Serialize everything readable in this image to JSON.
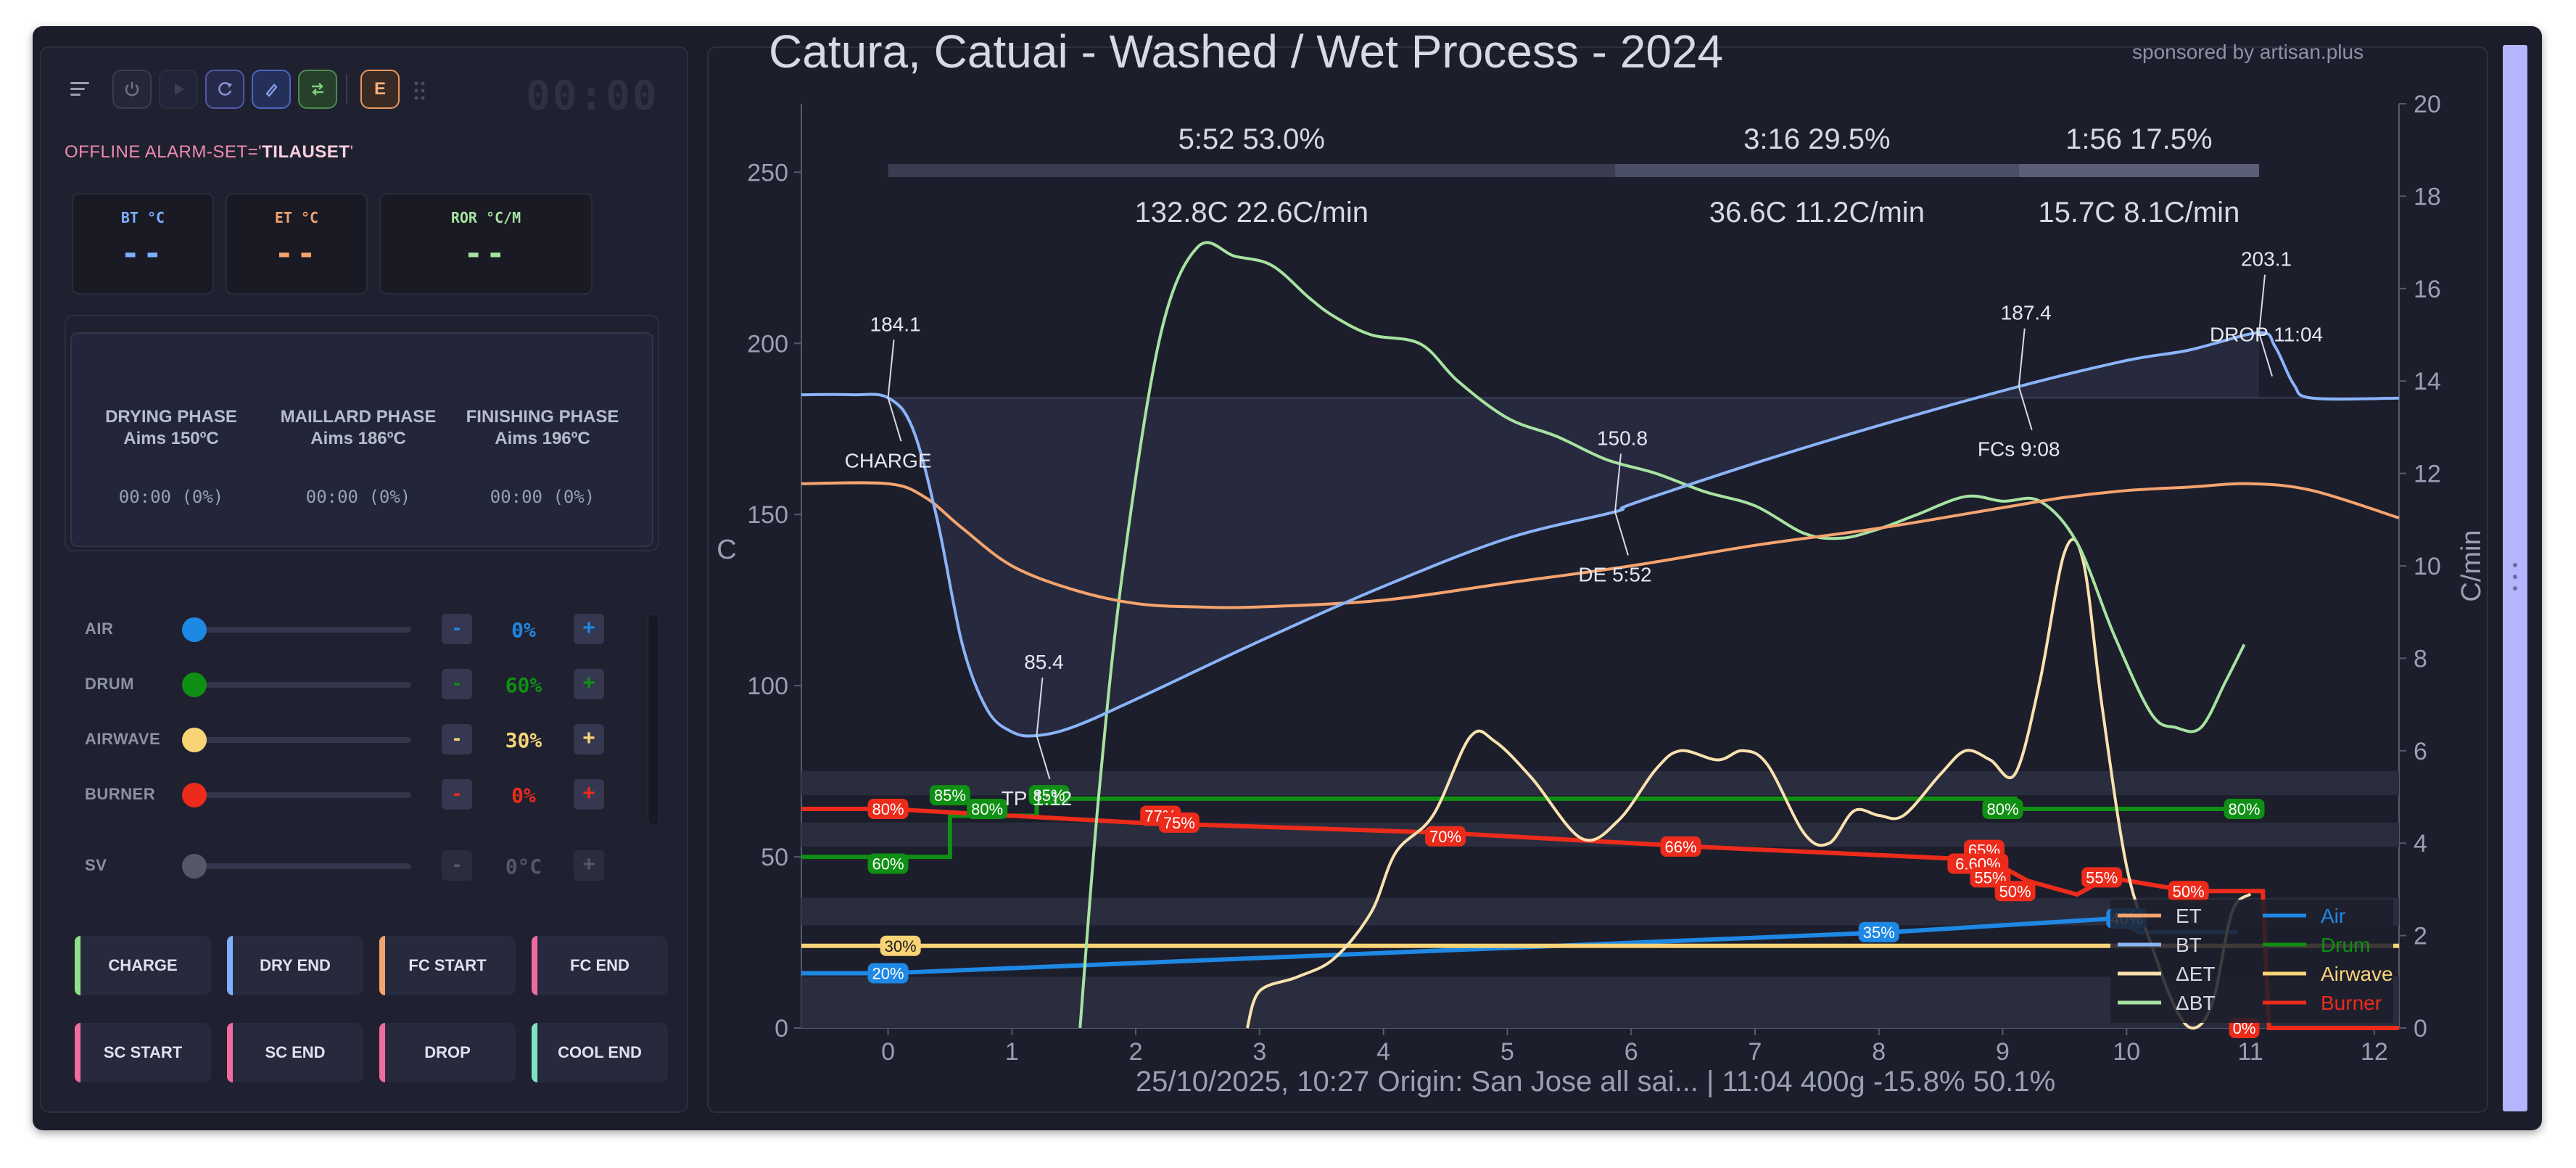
{
  "left_panel": {
    "clock": "00:00",
    "event_badge": "E",
    "alarm_prefix": "OFFLINE ALARM-SET='",
    "alarm_name": "TILAUSET",
    "alarm_suffix": "'",
    "readouts": [
      {
        "label": "BT °C",
        "value": "--",
        "color": "#7fb0ff"
      },
      {
        "label": "ET °C",
        "value": "--",
        "color": "#f5a36f"
      },
      {
        "label": "ROR °C/M",
        "value": "--",
        "color": "#a6e3a1"
      }
    ],
    "phases": [
      {
        "title": "DRYING PHASE",
        "aim": "Aims 150ºC",
        "time": "00:00 (0%)"
      },
      {
        "title": "MAILLARD PHASE",
        "aim": "Aims 186ºC",
        "time": "00:00 (0%)"
      },
      {
        "title": "FINISHING PHASE",
        "aim": "Aims 196ºC",
        "time": "00:00 (0%)"
      }
    ],
    "sliders": [
      {
        "name": "AIR",
        "value": "0%",
        "level": 0.0,
        "color": "#1e88e5"
      },
      {
        "name": "DRUM",
        "value": "60%",
        "level": 0.0,
        "color": "#0f8f13"
      },
      {
        "name": "AIRWAVE",
        "value": "30%",
        "level": 0.0,
        "color": "#f8d477"
      },
      {
        "name": "BURNER",
        "value": "0%",
        "level": 0.0,
        "color": "#ec2b1b"
      },
      {
        "name": "SV",
        "value": "0°C",
        "level": 0.0,
        "color": "#555869"
      }
    ],
    "minus": "-",
    "plus": "+",
    "event_buttons": [
      {
        "label": "CHARGE",
        "accent": "#8fe08a"
      },
      {
        "label": "DRY END",
        "accent": "#7fb0ff"
      },
      {
        "label": "FC START",
        "accent": "#f5a36f"
      },
      {
        "label": "FC END",
        "accent": "#f06ba0"
      },
      {
        "label": "SC START",
        "accent": "#f06ba0"
      },
      {
        "label": "SC END",
        "accent": "#f06ba0"
      },
      {
        "label": "DROP",
        "accent": "#f06ba0"
      },
      {
        "label": "COOL END",
        "accent": "#7fe3c8"
      }
    ]
  },
  "chart_header": {
    "title": "Catura, Catuai - Washed / Wet Process - 2024",
    "sponsor": "sponsored by artisan.plus",
    "phase_stats": [
      {
        "time": "5:52",
        "pct": "53.0%",
        "delta": "132.8C",
        "ror": "22.6C/min"
      },
      {
        "time": "3:16",
        "pct": "29.5%",
        "delta": "36.6C",
        "ror": "11.2C/min"
      },
      {
        "time": "1:56",
        "pct": "17.5%",
        "delta": "15.7C",
        "ror": "8.1C/min"
      }
    ],
    "footer": "25/10/2025, 10:27   Origin: San Jose all sai...   |   11:04   400g   -15.8%   50.1%"
  },
  "chart_data": {
    "type": "line",
    "ylabel": "C",
    "y2label": "C/min",
    "xlim": [
      -0.7,
      12.2
    ],
    "ylim": [
      0,
      270
    ],
    "y2lim": [
      0,
      20
    ],
    "x_ticks": [
      0,
      1,
      2,
      3,
      4,
      5,
      6,
      7,
      8,
      9,
      10,
      11,
      12
    ],
    "y_ticks": [
      0,
      50,
      100,
      150,
      200,
      250
    ],
    "y2_ticks": [
      0,
      2,
      4,
      6,
      8,
      10,
      12,
      14,
      16,
      18,
      20
    ],
    "series": [
      {
        "name": "BT",
        "axis": "left",
        "color": "#8ab4f8",
        "points": [
          [
            -0.7,
            185
          ],
          [
            -0.3,
            185
          ],
          [
            0,
            184.1
          ],
          [
            0.2,
            175
          ],
          [
            0.4,
            148
          ],
          [
            0.6,
            112
          ],
          [
            0.8,
            93
          ],
          [
            1.0,
            86.5
          ],
          [
            1.2,
            85.4
          ],
          [
            1.5,
            88
          ],
          [
            2.0,
            96
          ],
          [
            3,
            113
          ],
          [
            4,
            129
          ],
          [
            5,
            143
          ],
          [
            5.87,
            150.8
          ],
          [
            6,
            153
          ],
          [
            7,
            165
          ],
          [
            8,
            176
          ],
          [
            9.13,
            187.4
          ],
          [
            10,
            195
          ],
          [
            10.5,
            198
          ],
          [
            11.07,
            203.1
          ],
          [
            11.2,
            199
          ],
          [
            11.35,
            188
          ],
          [
            11.5,
            184
          ],
          [
            12.2,
            184
          ]
        ]
      },
      {
        "name": "ET",
        "axis": "left",
        "color": "#f5a36f",
        "points": [
          [
            -0.7,
            159
          ],
          [
            0,
            159
          ],
          [
            0.3,
            155
          ],
          [
            0.6,
            146
          ],
          [
            1,
            135
          ],
          [
            1.5,
            128
          ],
          [
            2,
            124
          ],
          [
            2.5,
            123
          ],
          [
            3,
            123
          ],
          [
            4,
            125
          ],
          [
            5,
            130
          ],
          [
            6,
            135
          ],
          [
            7,
            141
          ],
          [
            8,
            146
          ],
          [
            9,
            152
          ],
          [
            9.5,
            155
          ],
          [
            10,
            157
          ],
          [
            10.5,
            158
          ],
          [
            11,
            159
          ],
          [
            11.5,
            157
          ],
          [
            12.2,
            149
          ]
        ]
      },
      {
        "name": "ΔBT",
        "axis": "right",
        "color": "#a6e3a1",
        "points": [
          [
            1.55,
            0
          ],
          [
            1.7,
            5
          ],
          [
            1.9,
            10
          ],
          [
            2.2,
            15
          ],
          [
            2.5,
            16.9
          ],
          [
            2.8,
            16.7
          ],
          [
            3.1,
            16.5
          ],
          [
            3.4,
            15.8
          ],
          [
            3.6,
            15.4
          ],
          [
            3.9,
            15.0
          ],
          [
            4.3,
            14.8
          ],
          [
            4.6,
            14.0
          ],
          [
            5,
            13.2
          ],
          [
            5.4,
            12.8
          ],
          [
            5.8,
            12.3
          ],
          [
            6.2,
            12.0
          ],
          [
            6.6,
            11.6
          ],
          [
            7,
            11.3
          ],
          [
            7.4,
            10.7
          ],
          [
            7.7,
            10.6
          ],
          [
            8,
            10.8
          ],
          [
            8.3,
            11.1
          ],
          [
            8.7,
            11.5
          ],
          [
            9,
            11.4
          ],
          [
            9.3,
            11.4
          ],
          [
            9.6,
            10.5
          ],
          [
            9.9,
            8.5
          ],
          [
            10.2,
            6.8
          ],
          [
            10.4,
            6.5
          ],
          [
            10.6,
            6.5
          ],
          [
            10.8,
            7.5
          ],
          [
            10.95,
            8.3
          ]
        ]
      },
      {
        "name": "ΔET",
        "axis": "right",
        "color": "#f9e2af",
        "points": [
          [
            2.9,
            0
          ],
          [
            3.0,
            0.8
          ],
          [
            3.3,
            1.1
          ],
          [
            3.6,
            1.5
          ],
          [
            3.9,
            2.5
          ],
          [
            4.1,
            3.8
          ],
          [
            4.4,
            4.6
          ],
          [
            4.7,
            6.3
          ],
          [
            4.9,
            6.2
          ],
          [
            5.2,
            5.4
          ],
          [
            5.6,
            4.1
          ],
          [
            5.9,
            4.5
          ],
          [
            6.2,
            5.6
          ],
          [
            6.4,
            6.0
          ],
          [
            6.7,
            5.8
          ],
          [
            6.9,
            6.0
          ],
          [
            7.1,
            5.7
          ],
          [
            7.4,
            4.2
          ],
          [
            7.6,
            4.0
          ],
          [
            7.8,
            4.7
          ],
          [
            8.0,
            4.6
          ],
          [
            8.2,
            4.6
          ],
          [
            8.5,
            5.5
          ],
          [
            8.7,
            6.0
          ],
          [
            8.9,
            5.8
          ],
          [
            9.1,
            5.5
          ],
          [
            9.3,
            7.5
          ],
          [
            9.5,
            10.3
          ],
          [
            9.65,
            10.1
          ],
          [
            9.8,
            7.0
          ],
          [
            10.0,
            3.5
          ],
          [
            10.2,
            1.8
          ],
          [
            10.4,
            0.4
          ],
          [
            10.55,
            0.0
          ],
          [
            10.7,
            0.6
          ],
          [
            10.85,
            2.5
          ],
          [
            11.0,
            2.9
          ]
        ]
      }
    ],
    "annotations": [
      {
        "text": "184.1",
        "x": 0,
        "y": 184.1,
        "pos": "above"
      },
      {
        "text": "CHARGE",
        "x": 0,
        "y": 184.1,
        "pos": "below"
      },
      {
        "text": "85.4",
        "x": 1.2,
        "y": 85.4,
        "pos": "above"
      },
      {
        "text": "TP 1:12",
        "x": 1.2,
        "y": 85.4,
        "pos": "below"
      },
      {
        "text": "150.8",
        "x": 5.87,
        "y": 150.8,
        "pos": "above"
      },
      {
        "text": "DE 5:52",
        "x": 5.87,
        "y": 150.8,
        "pos": "below"
      },
      {
        "text": "187.4",
        "x": 9.13,
        "y": 187.4,
        "pos": "above"
      },
      {
        "text": "FCs 9:08",
        "x": 9.13,
        "y": 187.4,
        "pos": "below"
      },
      {
        "text": "203.1",
        "x": 11.07,
        "y": 203.1,
        "pos": "above"
      },
      {
        "text": "DROP 11:04",
        "x": 11.07,
        "y": 203.1,
        "pos": "below"
      }
    ],
    "phase_bars": [
      [
        0,
        5.87
      ],
      [
        5.87,
        9.13
      ],
      [
        9.13,
        11.07
      ]
    ],
    "control_series": [
      {
        "name": "Air",
        "color": "#1e88e5",
        "points": [
          [
            -0.7,
            16
          ],
          [
            0,
            16
          ],
          [
            8.1,
            28
          ],
          [
            9.9,
            32
          ],
          [
            10.1,
            28
          ],
          [
            10.9,
            28
          ]
        ],
        "labels": [
          {
            "text": "20%",
            "x": 0,
            "y": 16
          },
          {
            "text": "35%",
            "x": 8.0,
            "y": 28
          },
          {
            "text": "40%",
            "x": 10.0,
            "y": 32
          }
        ]
      },
      {
        "name": "Drum",
        "color": "#0f8f13",
        "points": [
          [
            -0.7,
            50
          ],
          [
            0.5,
            50
          ],
          [
            0.5,
            62
          ],
          [
            1.2,
            62
          ],
          [
            1.2,
            67
          ],
          [
            9.1,
            67
          ],
          [
            9.1,
            64
          ],
          [
            11.0,
            64
          ]
        ],
        "labels": [
          {
            "text": "60%",
            "x": 0,
            "y": 48
          },
          {
            "text": "85%",
            "x": 0.5,
            "y": 68
          },
          {
            "text": "80%",
            "x": 0.8,
            "y": 64
          },
          {
            "text": "85%",
            "x": 1.3,
            "y": 68
          },
          {
            "text": "80%",
            "x": 9.0,
            "y": 64
          },
          {
            "text": "80%",
            "x": 10.95,
            "y": 64
          }
        ]
      },
      {
        "name": "Airwave",
        "color": "#f8d477",
        "points": [
          [
            -0.7,
            24
          ],
          [
            12.2,
            24
          ]
        ],
        "labels": [
          {
            "text": "30%",
            "x": 0.1,
            "y": 24
          }
        ]
      },
      {
        "name": "Burner",
        "color": "#ec2b1b",
        "points": [
          [
            -0.7,
            64
          ],
          [
            0,
            64
          ],
          [
            2,
            60
          ],
          [
            4.5,
            57
          ],
          [
            6.5,
            53
          ],
          [
            8.9,
            49
          ],
          [
            9.2,
            43
          ],
          [
            9.6,
            39
          ],
          [
            9.85,
            44
          ],
          [
            10.5,
            40
          ],
          [
            11.1,
            40
          ],
          [
            11.15,
            0
          ],
          [
            12.2,
            0
          ]
        ],
        "labels": [
          {
            "text": "80%",
            "x": 0,
            "y": 64
          },
          {
            "text": "77%",
            "x": 2.2,
            "y": 62
          },
          {
            "text": "75%",
            "x": 2.35,
            "y": 60
          },
          {
            "text": "70%",
            "x": 4.5,
            "y": 56
          },
          {
            "text": "66%",
            "x": 6.4,
            "y": 53
          },
          {
            "text": "65%",
            "x": 8.85,
            "y": 52
          },
          {
            "text": "6.60%",
            "x": 8.8,
            "y": 48
          },
          {
            "text": "55%",
            "x": 8.9,
            "y": 44
          },
          {
            "text": "50%",
            "x": 9.1,
            "y": 40
          },
          {
            "text": "55%",
            "x": 9.8,
            "y": 44
          },
          {
            "text": "50%",
            "x": 10.5,
            "y": 40
          },
          {
            "text": "0%",
            "x": 10.95,
            "y": 0
          }
        ]
      }
    ],
    "legend": {
      "placement": "bottom-right",
      "entries": [
        {
          "name": "ET",
          "color": "#f5a36f"
        },
        {
          "name": "Air",
          "color": "#1e88e5"
        },
        {
          "name": "BT",
          "color": "#8ab4f8"
        },
        {
          "name": "Drum",
          "color": "#0f8f13"
        },
        {
          "name": "ΔET",
          "color": "#f9e2af"
        },
        {
          "name": "Airwave",
          "color": "#f8d477"
        },
        {
          "name": "ΔBT",
          "color": "#a6e3a1"
        },
        {
          "name": "Burner",
          "color": "#ec2b1b"
        }
      ]
    }
  }
}
